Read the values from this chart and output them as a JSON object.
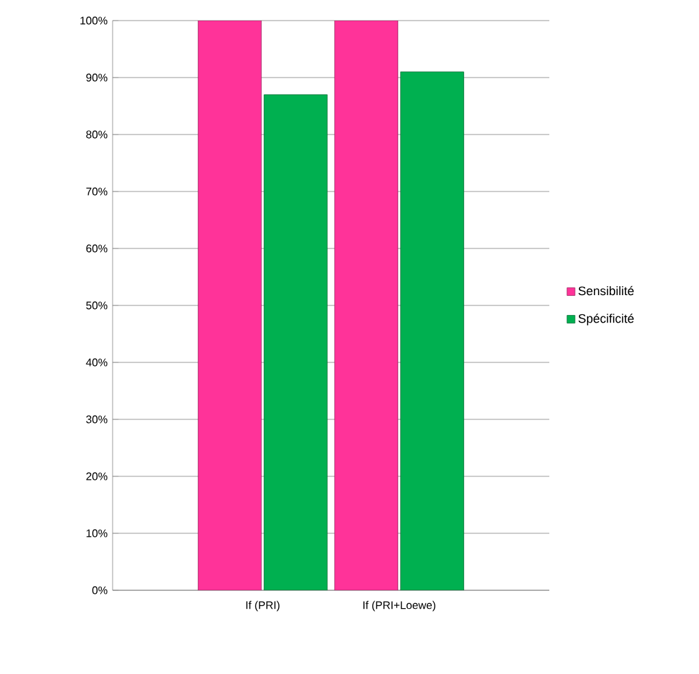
{
  "chart_data": {
    "type": "bar",
    "categories": [
      "If (PRI)",
      "If (PRI+Loewe)"
    ],
    "series": [
      {
        "name": "Sensibilité",
        "color": "#ff3399",
        "values": [
          100,
          100
        ]
      },
      {
        "name": "Spécificité",
        "color": "#00b050",
        "values": [
          87,
          91
        ]
      }
    ],
    "ylim": [
      0,
      100
    ],
    "yticks": [
      {
        "value": 0,
        "label": "0%"
      },
      {
        "value": 10,
        "label": "10%"
      },
      {
        "value": 20,
        "label": "20%"
      },
      {
        "value": 30,
        "label": "30%"
      },
      {
        "value": 40,
        "label": "40%"
      },
      {
        "value": 50,
        "label": "50%"
      },
      {
        "value": 60,
        "label": "60%"
      },
      {
        "value": 70,
        "label": "70%"
      },
      {
        "value": 80,
        "label": "80%"
      },
      {
        "value": 90,
        "label": "90%"
      },
      {
        "value": 100,
        "label": "100%"
      }
    ],
    "grid": "y",
    "legend": "right"
  }
}
